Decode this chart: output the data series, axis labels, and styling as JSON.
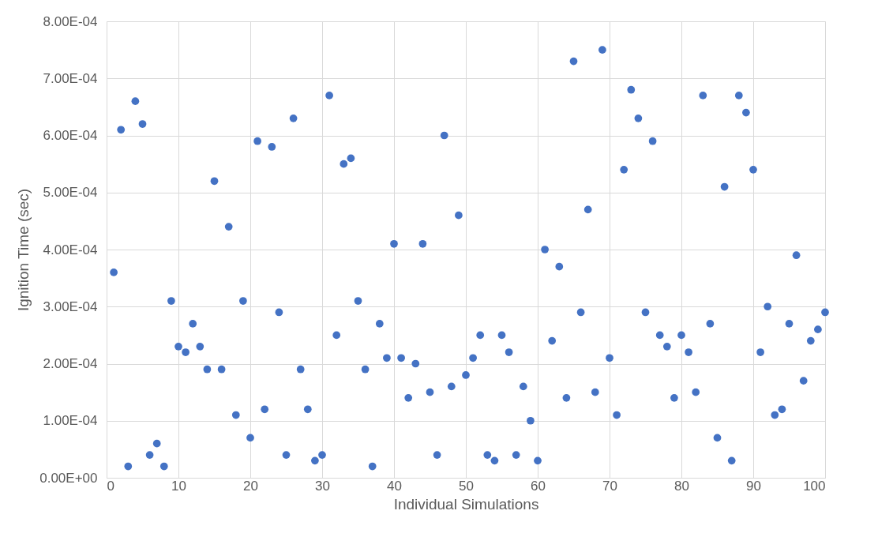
{
  "chart_data": {
    "type": "scatter",
    "xlabel": "Individual Simulations",
    "ylabel": "Ignition Time (sec)",
    "x": [
      1,
      2,
      3,
      4,
      5,
      6,
      7,
      8,
      9,
      10,
      11,
      12,
      13,
      14,
      15,
      16,
      17,
      18,
      19,
      20,
      21,
      22,
      23,
      24,
      25,
      26,
      27,
      28,
      29,
      30,
      31,
      32,
      33,
      34,
      35,
      36,
      37,
      38,
      39,
      40,
      41,
      42,
      43,
      44,
      45,
      46,
      47,
      48,
      49,
      50,
      51,
      52,
      53,
      54,
      55,
      56,
      57,
      58,
      59,
      60,
      61,
      62,
      63,
      64,
      65,
      66,
      67,
      68,
      69,
      70,
      71,
      72,
      73,
      74,
      75,
      76,
      77,
      78,
      79,
      80,
      81,
      82,
      83,
      84,
      85,
      86,
      87,
      88,
      89,
      90,
      91,
      92,
      93,
      94,
      95,
      96,
      97,
      98,
      99,
      100
    ],
    "series": [
      {
        "color": "#4472c4",
        "values": [
          0.00036,
          0.00061,
          2e-05,
          0.00066,
          0.00062,
          4e-05,
          6e-05,
          2e-05,
          0.00031,
          0.00023,
          0.00022,
          0.00027,
          0.00023,
          0.00019,
          0.00052,
          0.00019,
          0.00044,
          0.00011,
          0.00031,
          7e-05,
          0.00059,
          0.00012,
          0.00058,
          0.00029,
          4e-05,
          0.00063,
          0.00019,
          0.00012,
          3e-05,
          4e-05,
          0.00067,
          0.00025,
          0.00055,
          0.00056,
          0.00031,
          0.00019,
          2e-05,
          0.00027,
          0.00021,
          0.00041,
          0.00021,
          0.00014,
          0.0002,
          0.00041,
          0.00015,
          4e-05,
          0.0006,
          0.00016,
          0.00046,
          0.00018,
          0.00021,
          0.00025,
          4e-05,
          3e-05,
          0.00025,
          0.00022,
          4e-05,
          0.00016,
          0.0001,
          3e-05,
          0.0004,
          0.00024,
          0.00037,
          0.00014,
          0.00073,
          0.00029,
          0.00047,
          0.00015,
          0.00075,
          0.00021,
          0.00011,
          0.00054,
          0.00068,
          0.00063,
          0.00029,
          0.00059,
          0.00025,
          0.00023,
          0.00014,
          0.00025,
          0.00022,
          0.00015,
          0.00067,
          0.00027,
          7e-05,
          0.00051,
          3e-05,
          0.00067,
          0.00064,
          0.00054,
          0.00022,
          0.0003,
          0.00011,
          0.00012,
          0.00027,
          0.00039,
          0.00017,
          0.00024,
          0.00026,
          0.00029
        ]
      }
    ],
    "xlim": [
      0,
      100
    ],
    "xticks": [
      0,
      10,
      20,
      30,
      40,
      50,
      60,
      70,
      80,
      90,
      100
    ],
    "ylim": [
      0,
      0.0008
    ],
    "yticks": [
      {
        "value": 0,
        "label": "0.00E+00"
      },
      {
        "value": 0.0001,
        "label": "1.00E-04"
      },
      {
        "value": 0.0002,
        "label": "2.00E-04"
      },
      {
        "value": 0.0003,
        "label": "3.00E-04"
      },
      {
        "value": 0.0004,
        "label": "4.00E-04"
      },
      {
        "value": 0.0005,
        "label": "5.00E-04"
      },
      {
        "value": 0.0006,
        "label": "6.00E-04"
      },
      {
        "value": 0.0007,
        "label": "7.00E-04"
      },
      {
        "value": 0.0008,
        "label": "8.00E-04"
      }
    ],
    "grid": true,
    "marker": "circle"
  }
}
